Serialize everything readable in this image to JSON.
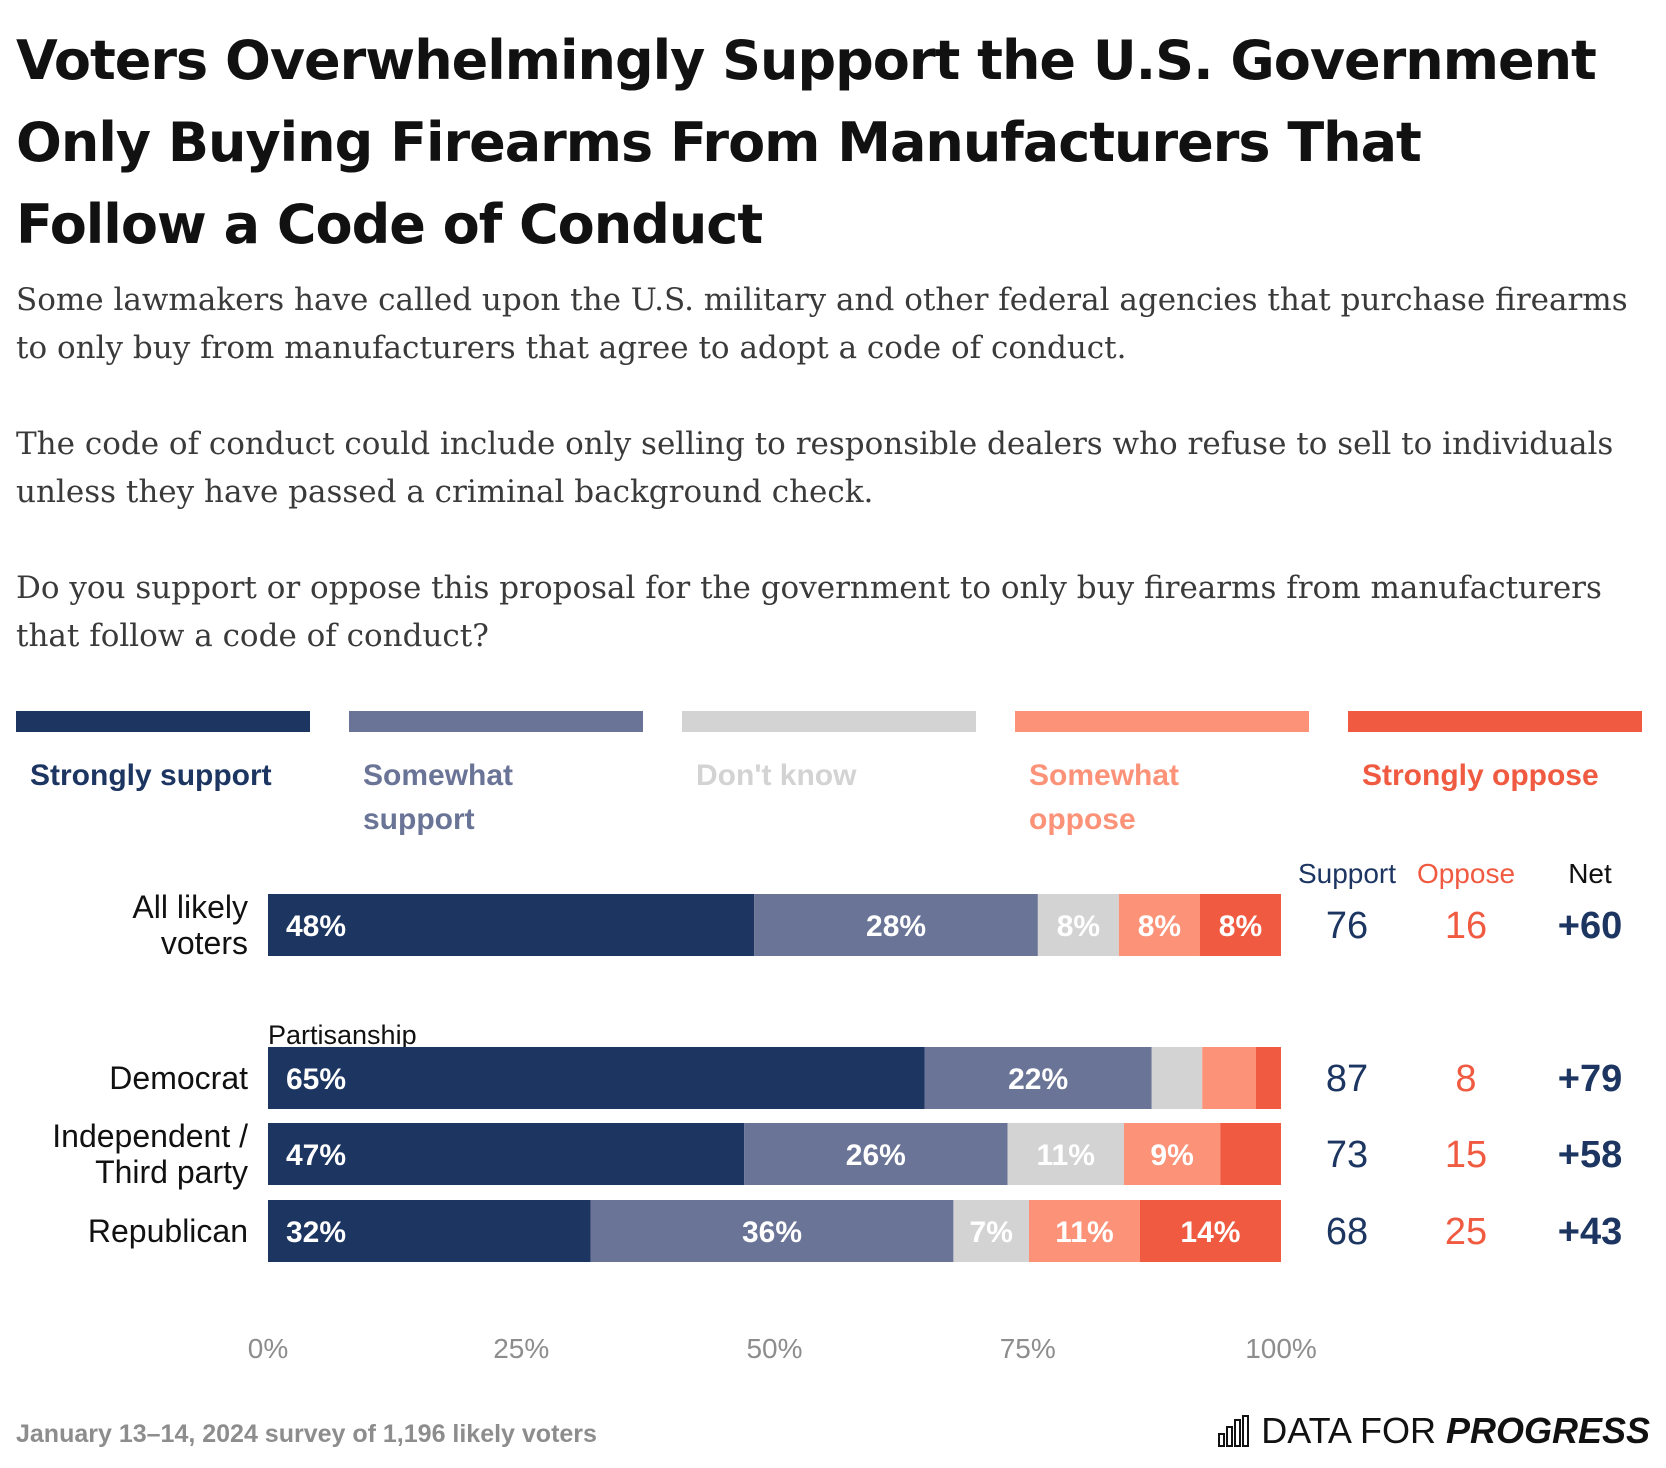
{
  "title": "Voters Overwhelmingly Support the U.S. Government Only Buying Firearms From Manufacturers That Follow a Code of Conduct",
  "subtitle": [
    "Some lawmakers have called upon the U.S. military and other federal agencies that purchase firearms to only buy from manufacturers that agree to adopt a code of conduct.",
    "The code of conduct could include only selling to responsible dealers who refuse to sell to individuals unless they have passed a criminal background check.",
    "Do you support or oppose this proposal for the government to only buy firearms from manufacturers that follow a code of conduct?"
  ],
  "colors": {
    "strongly_support": "#1c3561",
    "somewhat_support": "#6a7496",
    "dont_know": "#d3d3d3",
    "somewhat_oppose": "#fc9278",
    "strongly_oppose": "#f05a40"
  },
  "legend": [
    {
      "label": "Strongly support",
      "color": "#1c3561"
    },
    {
      "label": "Somewhat\nsupport",
      "color": "#6a7496"
    },
    {
      "label": "Don't know",
      "color": "#d3d3d3"
    },
    {
      "label": "Somewhat\noppose",
      "color": "#fc9278"
    },
    {
      "label": "Strongly oppose",
      "color": "#f05a40"
    }
  ],
  "chart_data": {
    "type": "bar",
    "orientation": "horizontal-stacked",
    "xlim": [
      0,
      100
    ],
    "x_ticks": [
      "0%",
      "25%",
      "50%",
      "75%",
      "100%"
    ],
    "group_label": "Partisanship",
    "column_headers": {
      "support": "Support",
      "oppose": "Oppose",
      "net": "Net"
    },
    "series_names": [
      "Strongly support",
      "Somewhat support",
      "Don't know",
      "Somewhat oppose",
      "Strongly oppose"
    ],
    "rows": [
      {
        "label": "All likely\nvoters",
        "values": [
          48,
          28,
          8,
          8,
          8
        ],
        "labels": [
          "48%",
          "28%",
          "8%",
          "8%",
          "8%"
        ],
        "support": "76",
        "oppose": "16",
        "net": "+60"
      },
      {
        "label": "Democrat",
        "values": [
          65,
          22.5,
          5,
          5.3,
          2.5
        ],
        "labels": [
          "65%",
          "22%",
          "",
          "",
          ""
        ],
        "support": "87",
        "oppose": "8",
        "net": "+79"
      },
      {
        "label": "Independent /\nThird party",
        "values": [
          47,
          26,
          11.5,
          9.5,
          6
        ],
        "labels": [
          "47%",
          "26%",
          "11%",
          "9%",
          ""
        ],
        "support": "73",
        "oppose": "15",
        "net": "+58"
      },
      {
        "label": "Republican",
        "values": [
          32,
          36,
          7.5,
          11,
          14
        ],
        "labels": [
          "32%",
          "36%",
          "7%",
          "11%",
          "14%"
        ],
        "support": "68",
        "oppose": "25",
        "net": "+43"
      }
    ]
  },
  "footer": {
    "note": "January 13–14, 2024 survey of 1,196 likely voters",
    "brand_part1": "DATA FOR",
    "brand_part2": "PROGRESS"
  }
}
